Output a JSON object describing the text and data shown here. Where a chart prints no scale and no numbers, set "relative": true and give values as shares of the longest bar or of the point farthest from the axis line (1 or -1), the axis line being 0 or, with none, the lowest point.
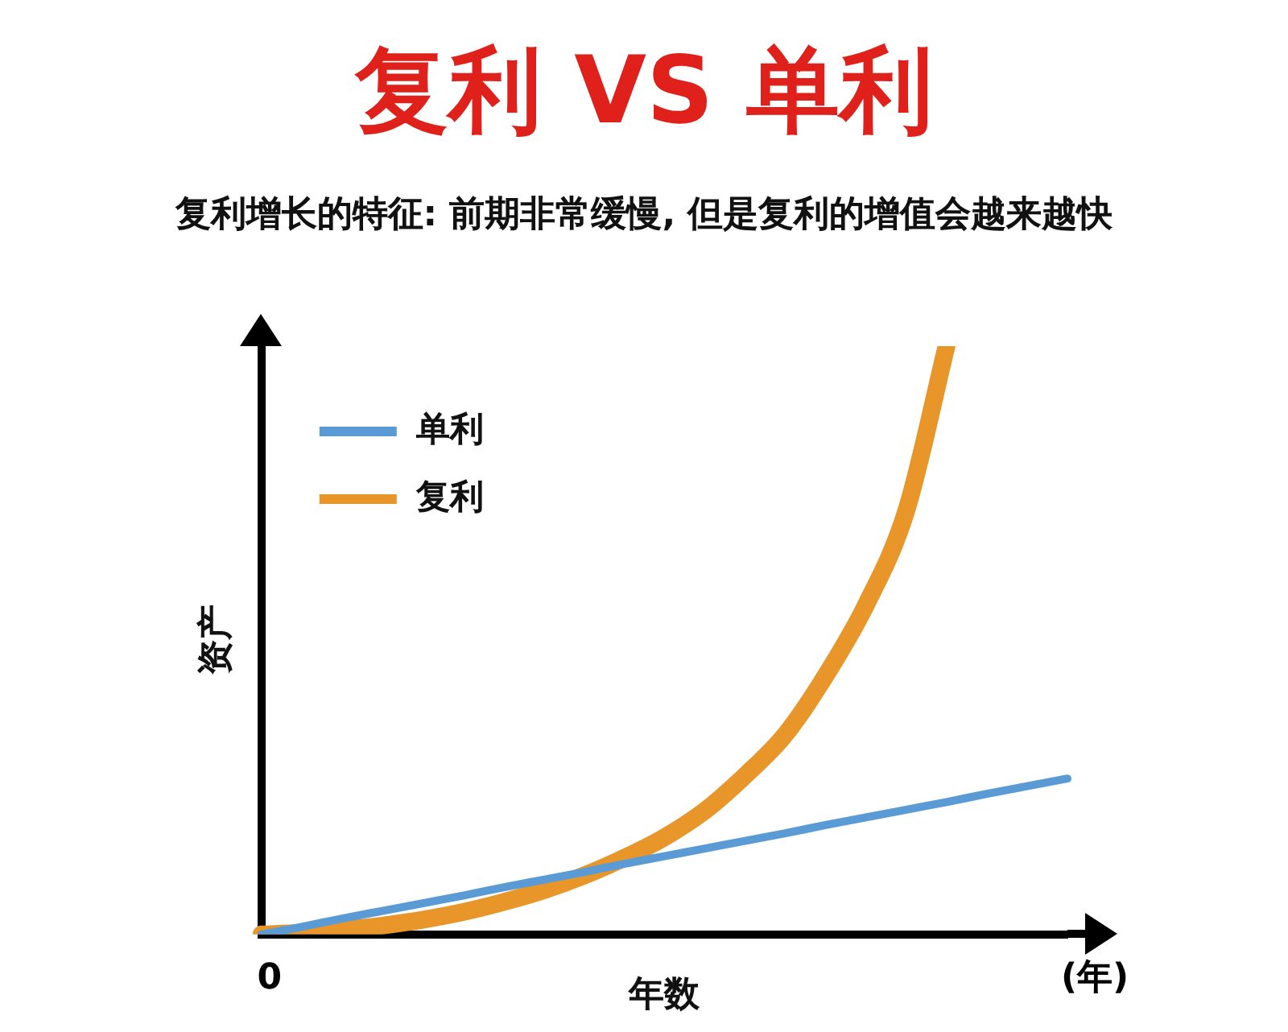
{
  "chart_data": {
    "type": "line",
    "title": "复利 VS 单利",
    "subtitle": "复利增长的特征: 前期非常缓慢, 但是复利的增值会越来越快",
    "xlabel": "年数",
    "ylabel": "资产",
    "annotations": [
      "0",
      "(年)"
    ],
    "relative": true,
    "grid": false,
    "legend": "top left",
    "marker": "none",
    "line_style": "solid",
    "categories": [
      null,
      null,
      null,
      null,
      null,
      null,
      null,
      null,
      null,
      null,
      null,
      null,
      null,
      null,
      null,
      null,
      null,
      null,
      null,
      null,
      null
    ],
    "series": [
      {
        "name": "单利",
        "color": "#5b9bd5",
        "values": [
          0,
          0.013,
          0.027,
          0.04,
          0.053,
          0.066,
          0.08,
          0.093,
          0.106,
          0.12,
          0.133,
          0.146,
          0.159,
          0.172,
          0.186,
          0.199,
          0.212,
          0.225,
          0.239,
          0.252,
          0.265
        ]
      },
      {
        "name": "复利",
        "color": "#e8962a",
        "values": [
          0,
          0.003,
          0.008,
          0.015,
          0.025,
          0.038,
          0.055,
          0.075,
          0.1,
          0.13,
          0.165,
          0.21,
          0.27,
          0.34,
          0.44,
          0.56,
          0.72,
          1.0,
          null,
          null,
          null
        ]
      }
    ]
  }
}
